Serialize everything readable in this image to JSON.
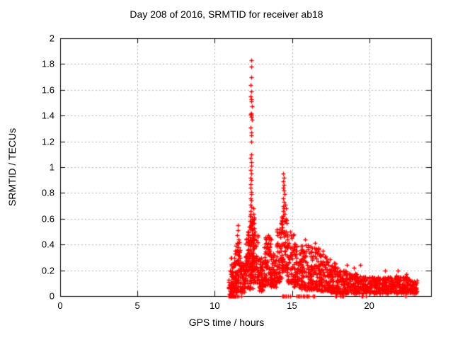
{
  "figure": {
    "title": "Day 208 of 2016, SRMTID for receiver ab18"
  },
  "chart_data": {
    "type": "scatter",
    "title": "Day 208 of 2016, SRMTID for receiver ab18",
    "xlabel": "GPS time / hours",
    "ylabel": "SRMTID / TECUs",
    "xlim": [
      0,
      24
    ],
    "ylim": [
      0,
      2
    ],
    "xticks": [
      0,
      5,
      10,
      15,
      20
    ],
    "xtick_labels": [
      "0",
      "5",
      "10",
      "15",
      "20"
    ],
    "yticks": [
      0,
      0.2,
      0.4,
      0.6,
      0.8,
      1,
      1.2,
      1.4,
      1.6,
      1.8,
      2
    ],
    "ytick_labels": [
      "0",
      "0.2",
      "0.4",
      "0.6",
      "0.8",
      "1",
      "1.2",
      "1.4",
      "1.6",
      "1.8",
      "2"
    ],
    "grid": true,
    "grid_style": "dashed",
    "grid_color": "#b3b3b3",
    "frame_color": "#000000",
    "background": "#ffffff",
    "marker": "plus",
    "marker_color": "#ff0000",
    "marker_size_px": 7,
    "legend": "none",
    "key_points": {
      "data_start_hour": 10.9,
      "data_end_hour": 23.1,
      "main_peak": {
        "x": 12.35,
        "y": 1.83
      },
      "secondary_peak": {
        "x": 14.45,
        "y": 0.95
      },
      "small_peak": {
        "x": 11.5,
        "y": 0.55
      },
      "quiet_before_hour": 10.9,
      "low_band_range": [
        0.0,
        0.2
      ]
    },
    "scatter_model": {
      "seed": 42,
      "bands": [
        [
          10.88,
          11.05,
          0.01,
          0.15,
          15,
          1.3
        ],
        [
          11.0,
          11.45,
          0.02,
          0.3,
          80,
          1.5
        ],
        [
          11.3,
          11.65,
          0.04,
          0.42,
          55,
          1.4
        ],
        [
          11.6,
          12.0,
          0.03,
          0.27,
          65,
          1.5
        ],
        [
          12.0,
          12.2,
          0.06,
          0.45,
          40,
          1.3
        ],
        [
          12.15,
          12.55,
          0.2,
          0.62,
          85,
          1.2
        ],
        [
          12.2,
          12.5,
          0.05,
          0.25,
          30,
          1.3
        ],
        [
          12.45,
          12.8,
          0.1,
          0.5,
          55,
          1.4
        ],
        [
          12.8,
          13.15,
          0.04,
          0.3,
          60,
          1.5
        ],
        [
          13.15,
          13.65,
          0.08,
          0.46,
          90,
          1.4
        ],
        [
          13.6,
          14.05,
          0.07,
          0.33,
          65,
          1.4
        ],
        [
          14.0,
          14.35,
          0.1,
          0.52,
          55,
          1.3
        ],
        [
          14.3,
          14.7,
          0.18,
          0.62,
          65,
          1.2
        ],
        [
          14.65,
          15.15,
          0.1,
          0.48,
          60,
          1.4
        ],
        [
          15.1,
          15.65,
          0.07,
          0.42,
          80,
          1.5
        ],
        [
          15.6,
          16.25,
          0.05,
          0.4,
          85,
          1.6
        ],
        [
          16.2,
          16.85,
          0.05,
          0.38,
          90,
          1.6
        ],
        [
          16.8,
          17.45,
          0.04,
          0.33,
          85,
          1.6
        ],
        [
          17.4,
          17.95,
          0.03,
          0.26,
          80,
          1.5
        ],
        [
          17.9,
          18.55,
          0.02,
          0.2,
          90,
          1.4
        ],
        [
          18.5,
          19.25,
          0.02,
          0.18,
          95,
          1.3
        ],
        [
          19.2,
          20.05,
          0.02,
          0.16,
          100,
          1.3
        ],
        [
          20.0,
          20.95,
          0.02,
          0.15,
          105,
          1.3
        ],
        [
          20.9,
          21.85,
          0.02,
          0.16,
          105,
          1.3
        ],
        [
          21.8,
          22.65,
          0.02,
          0.15,
          95,
          1.3
        ],
        [
          22.6,
          23.1,
          0.02,
          0.12,
          50,
          1.3
        ]
      ],
      "spike_points": [
        [
          11.48,
          0.55
        ],
        [
          11.5,
          0.51
        ],
        [
          11.46,
          0.47
        ],
        [
          11.52,
          0.44
        ],
        [
          11.44,
          0.41
        ],
        [
          11.55,
          0.38
        ],
        [
          11.4,
          0.35
        ],
        [
          12.35,
          1.83
        ],
        [
          12.35,
          1.78
        ],
        [
          12.36,
          1.7
        ],
        [
          12.34,
          1.64
        ],
        [
          12.37,
          1.59
        ],
        [
          12.33,
          1.55
        ],
        [
          12.38,
          1.53
        ],
        [
          12.35,
          1.51
        ],
        [
          12.42,
          1.47
        ],
        [
          12.36,
          1.42
        ],
        [
          12.34,
          1.41
        ],
        [
          12.37,
          1.4
        ],
        [
          12.35,
          1.39
        ],
        [
          12.4,
          1.37
        ],
        [
          12.33,
          1.31
        ],
        [
          12.36,
          1.27
        ],
        [
          12.38,
          1.25
        ],
        [
          12.35,
          1.2
        ],
        [
          12.37,
          1.1
        ],
        [
          12.34,
          1.07
        ],
        [
          12.36,
          1.04
        ],
        [
          12.38,
          1.01
        ],
        [
          12.33,
          0.98
        ],
        [
          12.36,
          0.95
        ],
        [
          12.3,
          0.92
        ],
        [
          12.37,
          0.9
        ],
        [
          12.34,
          0.87
        ],
        [
          12.32,
          0.84
        ],
        [
          12.38,
          0.81
        ],
        [
          12.35,
          0.79
        ],
        [
          12.31,
          0.76
        ],
        [
          12.37,
          0.74
        ],
        [
          12.33,
          0.71
        ],
        [
          12.36,
          0.69
        ],
        [
          12.3,
          0.66
        ],
        [
          12.34,
          0.64
        ],
        [
          12.28,
          0.62
        ],
        [
          12.4,
          0.6
        ],
        [
          12.26,
          0.58
        ],
        [
          12.44,
          0.56
        ],
        [
          12.24,
          0.54
        ],
        [
          12.46,
          0.52
        ],
        [
          12.52,
          0.68
        ],
        [
          12.5,
          0.64
        ],
        [
          12.54,
          0.6
        ],
        [
          12.48,
          0.57
        ],
        [
          12.15,
          0.5
        ],
        [
          12.18,
          0.47
        ],
        [
          12.12,
          0.44
        ],
        [
          14.45,
          0.95
        ],
        [
          14.47,
          0.92
        ],
        [
          14.44,
          0.89
        ],
        [
          14.48,
          0.86
        ],
        [
          14.43,
          0.84
        ],
        [
          14.46,
          0.82
        ],
        [
          14.5,
          0.79
        ],
        [
          14.44,
          0.76
        ],
        [
          14.47,
          0.73
        ],
        [
          14.42,
          0.7
        ],
        [
          14.49,
          0.68
        ],
        [
          14.45,
          0.66
        ],
        [
          14.52,
          0.64
        ],
        [
          14.58,
          0.71
        ],
        [
          14.6,
          0.68
        ],
        [
          14.41,
          0.62
        ],
        [
          15.85,
          0.44
        ],
        [
          16.5,
          0.41
        ],
        [
          17.0,
          0.35
        ],
        [
          18.55,
          0.24
        ],
        [
          19.0,
          0.22
        ],
        [
          19.4,
          0.24
        ],
        [
          21.0,
          0.2
        ],
        [
          21.85,
          0.2
        ],
        [
          22.4,
          0.17
        ],
        [
          14.9,
          0.5
        ],
        [
          15.05,
          0.47
        ],
        [
          13.45,
          0.47
        ],
        [
          13.35,
          0.44
        ]
      ],
      "zero_points": [
        10.92,
        10.95,
        10.98,
        11.0,
        11.02,
        11.05,
        11.08,
        11.1,
        11.12,
        11.15,
        11.18,
        11.2,
        11.22,
        11.25,
        11.3,
        11.35,
        11.45,
        11.55,
        11.72,
        14.4,
        14.45,
        14.5,
        14.62,
        14.75,
        14.88,
        15.3,
        15.4,
        15.5,
        15.58,
        15.72,
        15.8,
        15.95,
        16.0,
        16.08,
        16.35,
        16.45,
        17.8,
        17.88,
        18.15,
        18.22,
        18.32,
        19.5,
        19.58,
        19.78,
        22.35
      ]
    }
  }
}
